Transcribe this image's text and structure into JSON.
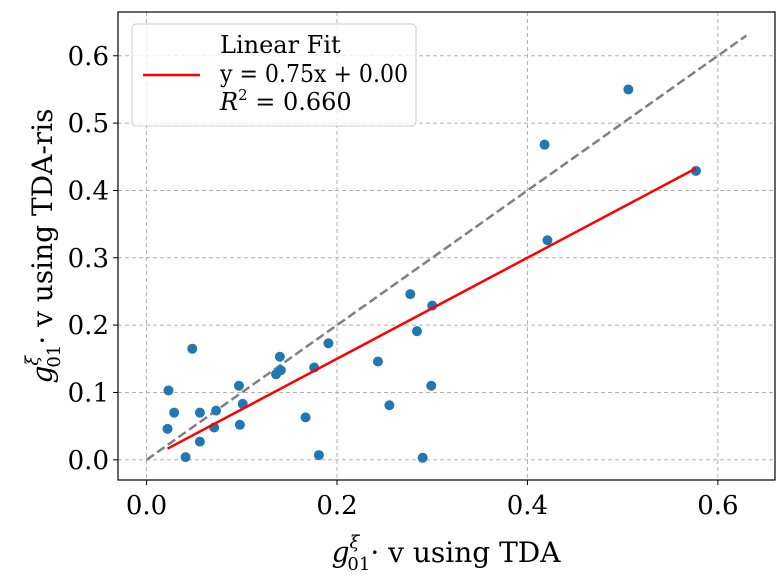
{
  "chart_data": {
    "type": "scatter",
    "xlabel": {
      "base": "g",
      "sup": "ξ",
      "sub": "01",
      "rest": "· v using TDA"
    },
    "ylabel": {
      "base": "g",
      "sup": "ξ",
      "sub": "01",
      "rest": "· v using TDA-ris"
    },
    "xlim": [
      -0.03,
      0.66
    ],
    "ylim": [
      -0.03,
      0.665
    ],
    "xticks": [
      0.0,
      0.2,
      0.4,
      0.6
    ],
    "xtick_labels": [
      "0.0",
      "0.2",
      "0.4",
      "0.6"
    ],
    "yticks": [
      0.0,
      0.1,
      0.2,
      0.3,
      0.4,
      0.5,
      0.6
    ],
    "ytick_labels": [
      "0.0",
      "0.1",
      "0.2",
      "0.3",
      "0.4",
      "0.5",
      "0.6"
    ],
    "grid": true,
    "points": {
      "color": "#1f77b4",
      "x": [
        0.023,
        0.022,
        0.029,
        0.048,
        0.041,
        0.056,
        0.056,
        0.071,
        0.073,
        0.097,
        0.101,
        0.098,
        0.136,
        0.14,
        0.141,
        0.176,
        0.167,
        0.181,
        0.191,
        0.243,
        0.255,
        0.277,
        0.284,
        0.3,
        0.299,
        0.29,
        0.418,
        0.421,
        0.506,
        0.577
      ],
      "y": [
        0.103,
        0.046,
        0.07,
        0.165,
        0.004,
        0.07,
        0.027,
        0.048,
        0.073,
        0.11,
        0.083,
        0.052,
        0.127,
        0.153,
        0.133,
        0.137,
        0.063,
        0.007,
        0.173,
        0.146,
        0.081,
        0.246,
        0.191,
        0.229,
        0.11,
        0.003,
        0.468,
        0.326,
        0.55,
        0.429
      ]
    },
    "fit_line": {
      "slope": 0.75,
      "intercept": 0.0,
      "x_range": [
        0.022,
        0.577
      ],
      "color": "#ff0000"
    },
    "identity_line": {
      "x_range": [
        0.0,
        0.63
      ],
      "color": "#808080",
      "style": "dashed"
    },
    "legend": {
      "placement": "top-left",
      "lines": [
        "Linear Fit",
        "y = 0.75x + 0.00",
        "R² = 0.660"
      ],
      "line1": "Linear Fit",
      "eq_y": "y",
      "eq_rest": " = 0.75",
      "eq_x": "x",
      "eq_tail": " + 0.00",
      "r_base": "R",
      "r_sup": "2",
      "r_rest": " = 0.660"
    }
  }
}
